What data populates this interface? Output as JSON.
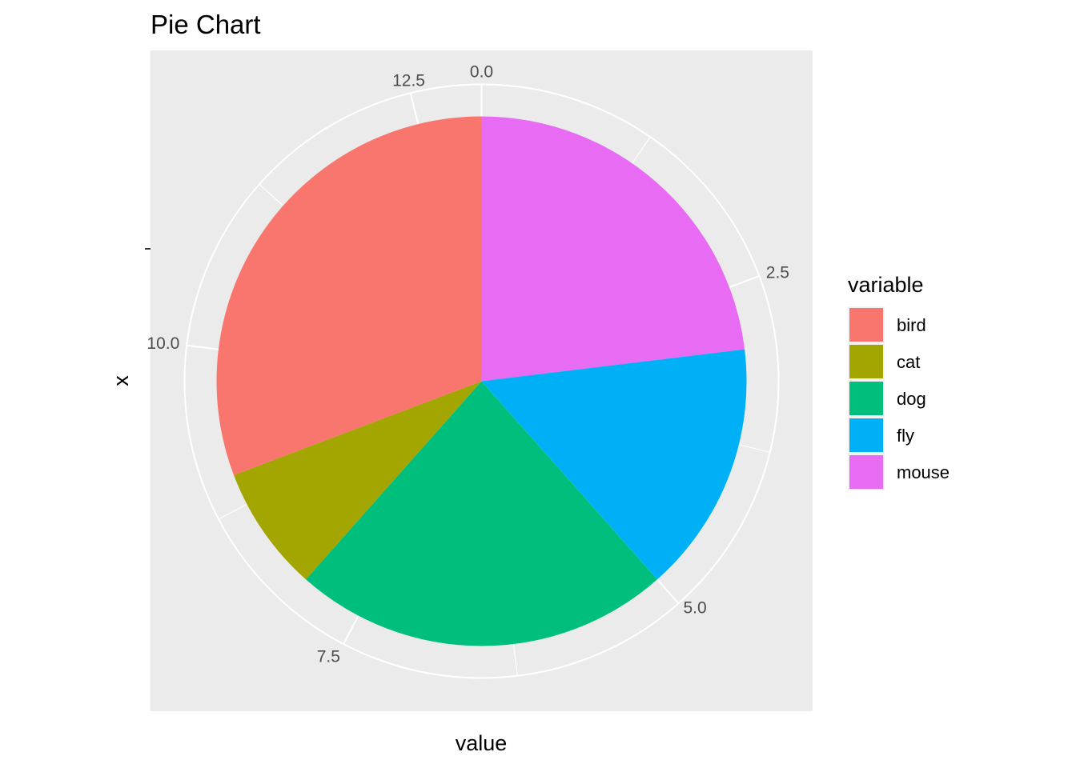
{
  "chart_data": {
    "type": "pie",
    "title": "Pie Chart",
    "xlabel": "value",
    "ylabel": "x",
    "y_tick_label": "",
    "categories": [
      "bird",
      "cat",
      "dog",
      "fly",
      "mouse"
    ],
    "values": [
      4.0,
      1.0,
      3.0,
      2.0,
      3.0
    ],
    "colors": [
      "#F8766D",
      "#A3A500",
      "#00BF7D",
      "#00B0F6",
      "#E76BF3"
    ],
    "stack_order": [
      "mouse",
      "fly",
      "dog",
      "cat",
      "bird"
    ],
    "angle_axis": {
      "range": [
        0,
        13
      ],
      "tick_values": [
        0.0,
        2.5,
        5.0,
        7.5,
        10.0,
        12.5
      ],
      "tick_labels": [
        "0.0",
        "2.5",
        "5.0",
        "7.5",
        "10.0",
        "12.5"
      ]
    },
    "legend": {
      "title": "variable",
      "placement": "right"
    },
    "panel_background": "#EBEBEB",
    "grid": true,
    "grid_color": "#FFFFFF"
  }
}
